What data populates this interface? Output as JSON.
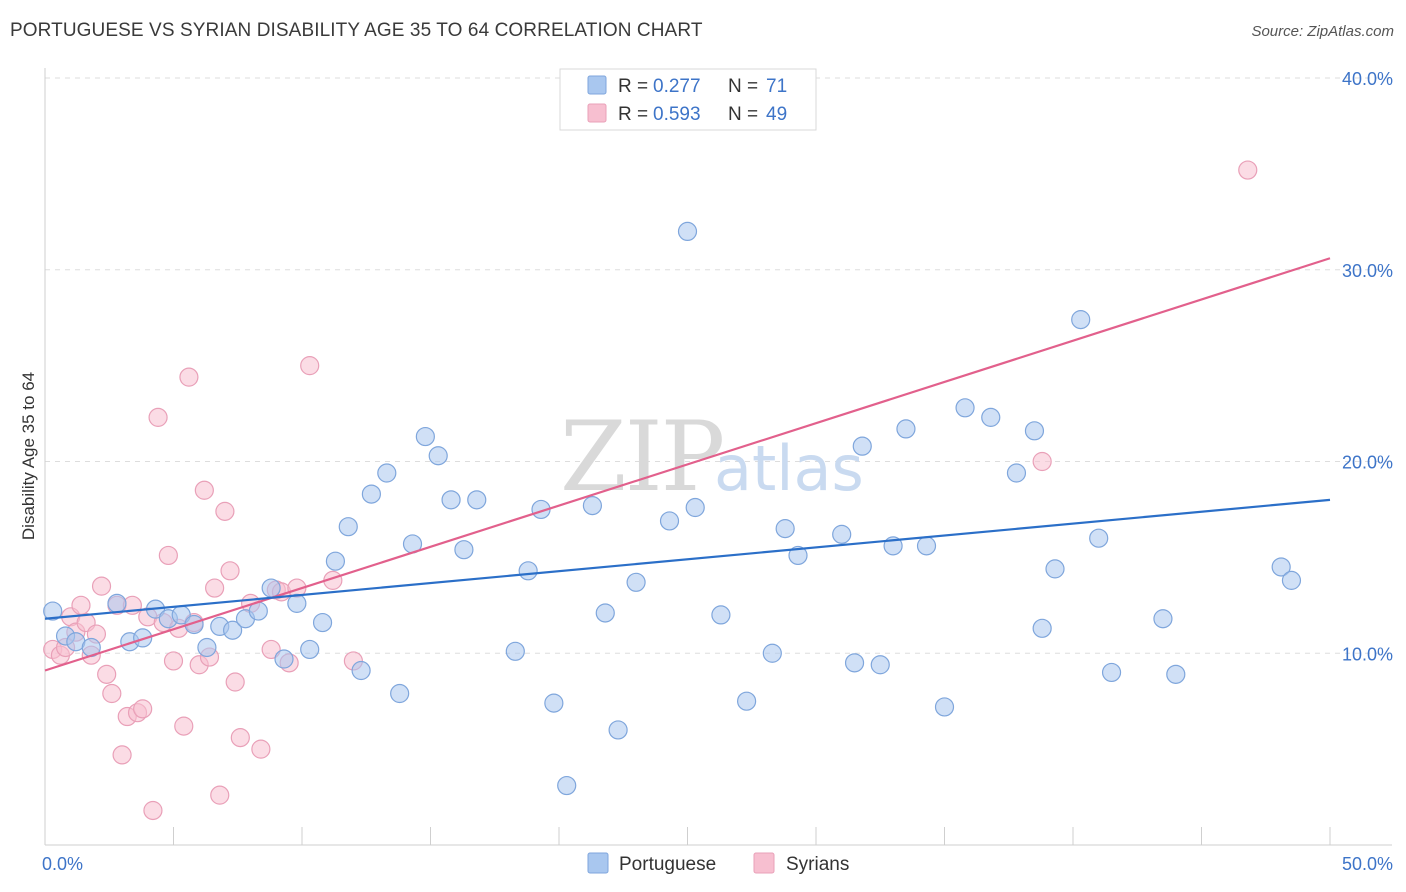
{
  "title": "PORTUGUESE VS SYRIAN DISABILITY AGE 35 TO 64 CORRELATION CHART",
  "source": "Source: ZipAtlas.com",
  "colors": {
    "portuguese_fill": "#a9c7ef",
    "portuguese_stroke": "#7fa6dc",
    "portuguese_line": "#2b6fc8",
    "syrians_fill": "#f7bfd0",
    "syrians_stroke": "#e9a0b8",
    "syrians_line": "#e2608c",
    "tick_label": "#3d74c8",
    "grid": "#dddddd"
  },
  "legend": {
    "r_label": "R =",
    "n_label": "N =",
    "rows": [
      {
        "r": "0.277",
        "n": "71"
      },
      {
        "r": "0.593",
        "n": "49"
      }
    ]
  },
  "watermark": {
    "zip": "ZIP",
    "atlas": "atlas"
  },
  "chart_data": {
    "type": "scatter",
    "title": "PORTUGUESE VS SYRIAN DISABILITY AGE 35 TO 64 CORRELATION CHART",
    "xlabel": "",
    "ylabel": "Disability Age 35 to 64",
    "xlim": [
      0,
      50
    ],
    "ylim": [
      0,
      40
    ],
    "x_ticks": [
      0,
      50
    ],
    "x_tick_labels": [
      "0.0%",
      "50.0%"
    ],
    "y_ticks": [
      10,
      20,
      30,
      40
    ],
    "y_tick_labels": [
      "10.0%",
      "20.0%",
      "30.0%",
      "40.0%"
    ],
    "grid": true,
    "legend_position": "top-center",
    "series": [
      {
        "name": "Portuguese",
        "r": 0.277,
        "n": 71,
        "trend": [
          [
            0,
            11.8
          ],
          [
            50,
            18.0
          ]
        ],
        "points": [
          [
            0.3,
            12.2
          ],
          [
            0.8,
            10.9
          ],
          [
            1.2,
            10.6
          ],
          [
            1.8,
            10.3
          ],
          [
            2.8,
            12.6
          ],
          [
            3.3,
            10.6
          ],
          [
            3.8,
            10.8
          ],
          [
            4.3,
            12.3
          ],
          [
            4.8,
            11.8
          ],
          [
            5.3,
            12.0
          ],
          [
            5.8,
            11.5
          ],
          [
            6.3,
            10.3
          ],
          [
            6.8,
            11.4
          ],
          [
            7.3,
            11.2
          ],
          [
            7.8,
            11.8
          ],
          [
            8.3,
            12.2
          ],
          [
            8.8,
            13.4
          ],
          [
            9.3,
            9.7
          ],
          [
            9.8,
            12.6
          ],
          [
            10.3,
            10.2
          ],
          [
            10.8,
            11.6
          ],
          [
            11.3,
            14.8
          ],
          [
            11.8,
            16.6
          ],
          [
            12.3,
            9.1
          ],
          [
            12.7,
            18.3
          ],
          [
            13.3,
            19.4
          ],
          [
            13.8,
            7.9
          ],
          [
            14.3,
            15.7
          ],
          [
            14.8,
            21.3
          ],
          [
            15.3,
            20.3
          ],
          [
            15.8,
            18.0
          ],
          [
            16.3,
            15.4
          ],
          [
            16.8,
            18.0
          ],
          [
            18.3,
            10.1
          ],
          [
            18.8,
            14.3
          ],
          [
            19.3,
            17.5
          ],
          [
            19.8,
            7.4
          ],
          [
            20.3,
            3.1
          ],
          [
            21.3,
            17.7
          ],
          [
            21.8,
            12.1
          ],
          [
            22.3,
            6.0
          ],
          [
            23.0,
            13.7
          ],
          [
            24.3,
            16.9
          ],
          [
            25.0,
            32.0
          ],
          [
            25.3,
            17.6
          ],
          [
            26.3,
            12.0
          ],
          [
            27.3,
            7.5
          ],
          [
            28.3,
            10.0
          ],
          [
            28.8,
            16.5
          ],
          [
            29.3,
            15.1
          ],
          [
            31.0,
            16.2
          ],
          [
            31.5,
            9.5
          ],
          [
            31.8,
            20.8
          ],
          [
            32.5,
            9.4
          ],
          [
            33.0,
            15.6
          ],
          [
            33.5,
            21.7
          ],
          [
            34.3,
            15.6
          ],
          [
            35.0,
            7.2
          ],
          [
            35.8,
            22.8
          ],
          [
            36.8,
            22.3
          ],
          [
            37.8,
            19.4
          ],
          [
            38.5,
            21.6
          ],
          [
            38.8,
            11.3
          ],
          [
            39.3,
            14.4
          ],
          [
            40.3,
            27.4
          ],
          [
            41.0,
            16.0
          ],
          [
            41.5,
            9.0
          ],
          [
            43.5,
            11.8
          ],
          [
            44.0,
            8.9
          ],
          [
            48.1,
            14.5
          ],
          [
            48.5,
            13.8
          ]
        ]
      },
      {
        "name": "Syrians",
        "r": 0.593,
        "n": 49,
        "trend": [
          [
            0,
            9.1
          ],
          [
            50,
            30.6
          ]
        ],
        "points": [
          [
            0.3,
            10.2
          ],
          [
            0.6,
            9.9
          ],
          [
            0.8,
            10.3
          ],
          [
            1.0,
            11.9
          ],
          [
            1.2,
            11.1
          ],
          [
            1.4,
            12.5
          ],
          [
            1.6,
            11.6
          ],
          [
            1.8,
            9.9
          ],
          [
            2.0,
            11.0
          ],
          [
            2.2,
            13.5
          ],
          [
            2.4,
            8.9
          ],
          [
            2.6,
            7.9
          ],
          [
            2.8,
            12.5
          ],
          [
            3.0,
            4.7
          ],
          [
            3.2,
            6.7
          ],
          [
            3.4,
            12.5
          ],
          [
            3.6,
            6.9
          ],
          [
            3.8,
            7.1
          ],
          [
            4.0,
            11.9
          ],
          [
            4.2,
            1.8
          ],
          [
            4.4,
            22.3
          ],
          [
            4.6,
            11.6
          ],
          [
            4.8,
            15.1
          ],
          [
            5.0,
            9.6
          ],
          [
            5.2,
            11.3
          ],
          [
            5.4,
            6.2
          ],
          [
            5.6,
            24.4
          ],
          [
            5.8,
            11.6
          ],
          [
            6.0,
            9.4
          ],
          [
            6.2,
            18.5
          ],
          [
            6.4,
            9.8
          ],
          [
            6.6,
            13.4
          ],
          [
            6.8,
            2.6
          ],
          [
            7.0,
            17.4
          ],
          [
            7.2,
            14.3
          ],
          [
            7.4,
            8.5
          ],
          [
            7.6,
            5.6
          ],
          [
            8.0,
            12.6
          ],
          [
            8.4,
            5.0
          ],
          [
            8.8,
            10.2
          ],
          [
            9.0,
            13.3
          ],
          [
            9.2,
            13.2
          ],
          [
            9.5,
            9.5
          ],
          [
            9.8,
            13.4
          ],
          [
            10.3,
            25.0
          ],
          [
            11.2,
            13.8
          ],
          [
            12.0,
            9.6
          ],
          [
            38.8,
            20.0
          ],
          [
            46.8,
            35.2
          ]
        ]
      }
    ]
  }
}
